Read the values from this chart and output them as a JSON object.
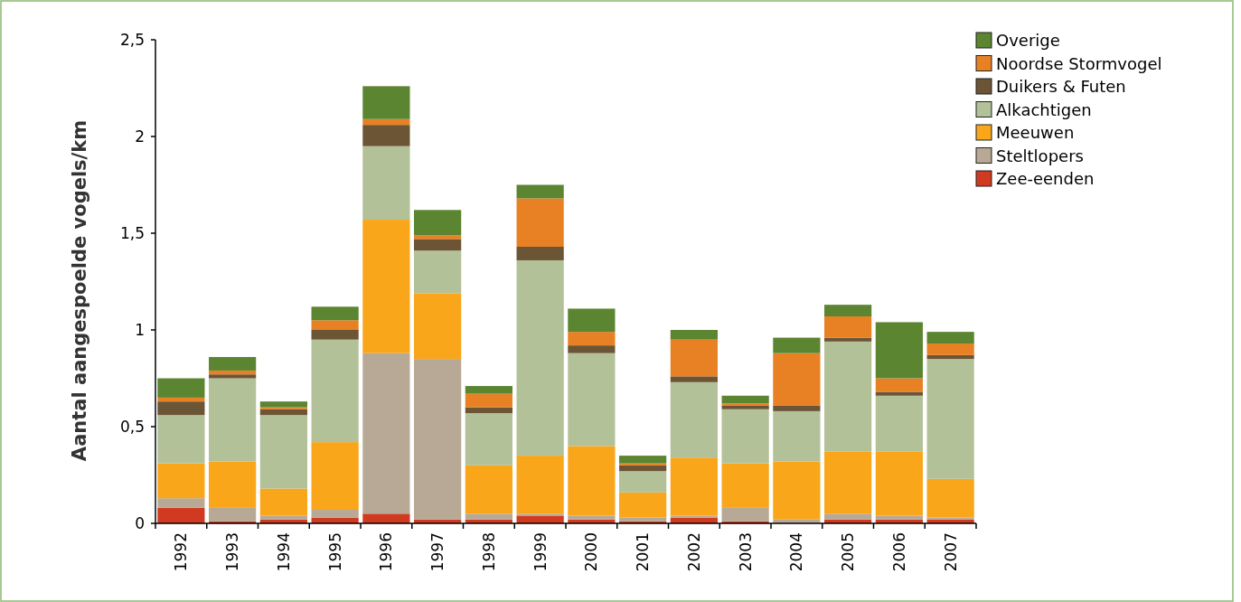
{
  "chart_data": {
    "type": "bar",
    "stacked": true,
    "ylabel": "Aantal aangespoelde vogels/km",
    "categories": [
      "1992",
      "1993",
      "1994",
      "1995",
      "1996",
      "1997",
      "1998",
      "1999",
      "2000",
      "2001",
      "2002",
      "2003",
      "2004",
      "2005",
      "2006",
      "2007"
    ],
    "series": [
      {
        "name": "Zee-eenden",
        "color": "#d03a20",
        "values": [
          0.08,
          0.01,
          0.02,
          0.03,
          0.05,
          0.02,
          0.02,
          0.04,
          0.02,
          0.01,
          0.03,
          0.01,
          0,
          0.02,
          0.02,
          0.02
        ]
      },
      {
        "name": "Steltlopers",
        "color": "#b8a996",
        "values": [
          0.05,
          0.07,
          0.02,
          0.04,
          0.83,
          0.83,
          0.03,
          0.01,
          0.02,
          0.02,
          0.01,
          0.07,
          0.02,
          0.03,
          0.02,
          0.01
        ]
      },
      {
        "name": "Meeuwen",
        "color": "#f9a61b",
        "values": [
          0.18,
          0.24,
          0.14,
          0.35,
          0.69,
          0.34,
          0.25,
          0.3,
          0.36,
          0.13,
          0.3,
          0.23,
          0.3,
          0.32,
          0.33,
          0.2
        ]
      },
      {
        "name": "Alkachtigen",
        "color": "#b2c198",
        "values": [
          0.25,
          0.43,
          0.38,
          0.53,
          0.38,
          0.22,
          0.27,
          1.01,
          0.48,
          0.11,
          0.39,
          0.28,
          0.26,
          0.57,
          0.29,
          0.62
        ]
      },
      {
        "name": "Duikers & Futen",
        "color": "#6b5535",
        "values": [
          0.07,
          0.02,
          0.03,
          0.05,
          0.11,
          0.06,
          0.03,
          0.07,
          0.04,
          0.03,
          0.03,
          0.02,
          0.03,
          0.02,
          0.02,
          0.02
        ]
      },
      {
        "name": "Noordse Stormvogel",
        "color": "#e88124",
        "values": [
          0.02,
          0.02,
          0.01,
          0.05,
          0.03,
          0.02,
          0.07,
          0.25,
          0.07,
          0.01,
          0.19,
          0.01,
          0.27,
          0.11,
          0.07,
          0.06
        ]
      },
      {
        "name": "Overige",
        "color": "#5b8530",
        "values": [
          0.1,
          0.07,
          0.03,
          0.07,
          0.17,
          0.13,
          0.04,
          0.07,
          0.12,
          0.04,
          0.05,
          0.04,
          0.08,
          0.06,
          0.29,
          0.06
        ]
      }
    ],
    "ylim": [
      0,
      2.5
    ],
    "yticks": [
      {
        "value": 0,
        "label": "0"
      },
      {
        "value": 0.5,
        "label": "0,5"
      },
      {
        "value": 1,
        "label": "1"
      },
      {
        "value": 1.5,
        "label": "1,5"
      },
      {
        "value": 2,
        "label": "2"
      },
      {
        "value": 2.5,
        "label": "2,5"
      }
    ],
    "legend": "top right",
    "grid": false
  }
}
